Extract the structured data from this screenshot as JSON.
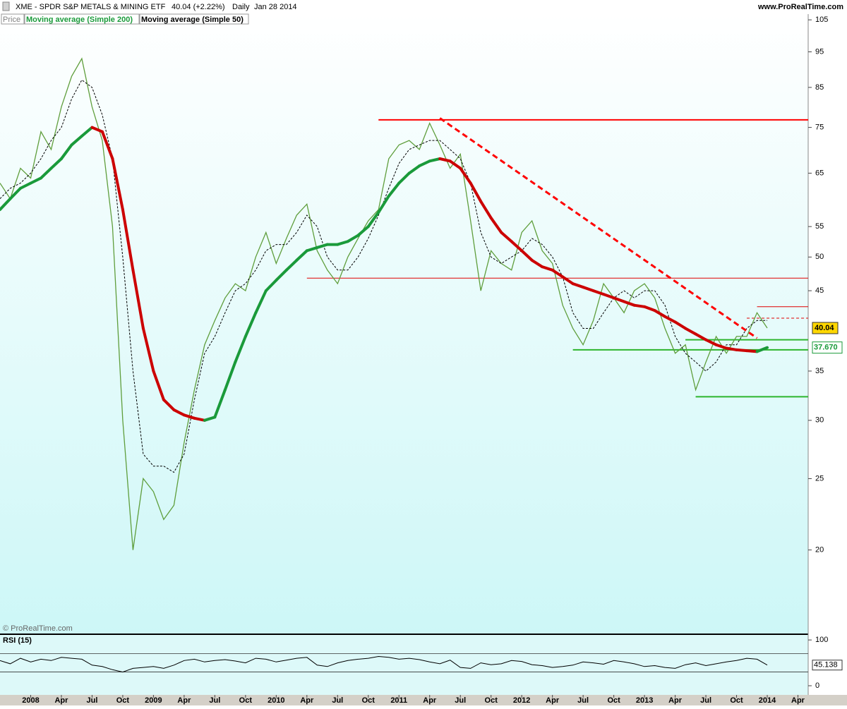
{
  "chart_data": {
    "type": "line",
    "title": "XME - SPDR S&P METALS & MINING ETF",
    "quote": "40.04 (+2.22%)",
    "period": "Daily",
    "date": "Jan 28 2014",
    "source": "www.ProRealTime.com",
    "watermark": "© ProRealTime.com",
    "log_scale": true,
    "x": [
      "2007-10",
      "2007-11",
      "2007-12",
      "2008-01",
      "2008-02",
      "2008-03",
      "2008-04",
      "2008-05",
      "2008-06",
      "2008-07",
      "2008-08",
      "2008-09",
      "2008-10",
      "2008-11",
      "2008-12",
      "2009-01",
      "2009-02",
      "2009-03",
      "2009-04",
      "2009-05",
      "2009-06",
      "2009-07",
      "2009-08",
      "2009-09",
      "2009-10",
      "2009-11",
      "2009-12",
      "2010-01",
      "2010-02",
      "2010-03",
      "2010-04",
      "2010-05",
      "2010-06",
      "2010-07",
      "2010-08",
      "2010-09",
      "2010-10",
      "2010-11",
      "2010-12",
      "2011-01",
      "2011-02",
      "2011-03",
      "2011-04",
      "2011-05",
      "2011-06",
      "2011-07",
      "2011-08",
      "2011-09",
      "2011-10",
      "2011-11",
      "2011-12",
      "2012-01",
      "2012-02",
      "2012-03",
      "2012-04",
      "2012-05",
      "2012-06",
      "2012-07",
      "2012-08",
      "2012-09",
      "2012-10",
      "2012-11",
      "2012-12",
      "2013-01",
      "2013-02",
      "2013-03",
      "2013-04",
      "2013-05",
      "2013-06",
      "2013-07",
      "2013-08",
      "2013-09",
      "2013-10",
      "2013-11",
      "2013-12",
      "2014-01"
    ],
    "xlim": [
      "2007-10",
      "2014-05"
    ],
    "xticks": [
      {
        "value": "2008-01",
        "label": "2008"
      },
      {
        "value": "2008-04",
        "label": "Apr"
      },
      {
        "value": "2008-07",
        "label": "Jul"
      },
      {
        "value": "2008-10",
        "label": "Oct"
      },
      {
        "value": "2009-01",
        "label": "2009"
      },
      {
        "value": "2009-04",
        "label": "Apr"
      },
      {
        "value": "2009-07",
        "label": "Jul"
      },
      {
        "value": "2009-10",
        "label": "Oct"
      },
      {
        "value": "2010-01",
        "label": "2010"
      },
      {
        "value": "2010-04",
        "label": "Apr"
      },
      {
        "value": "2010-07",
        "label": "Jul"
      },
      {
        "value": "2010-10",
        "label": "Oct"
      },
      {
        "value": "2011-01",
        "label": "2011"
      },
      {
        "value": "2011-04",
        "label": "Apr"
      },
      {
        "value": "2011-07",
        "label": "Jul"
      },
      {
        "value": "2011-10",
        "label": "Oct"
      },
      {
        "value": "2012-01",
        "label": "2012"
      },
      {
        "value": "2012-04",
        "label": "Apr"
      },
      {
        "value": "2012-07",
        "label": "Jul"
      },
      {
        "value": "2012-10",
        "label": "Oct"
      },
      {
        "value": "2013-01",
        "label": "2013"
      },
      {
        "value": "2013-04",
        "label": "Apr"
      },
      {
        "value": "2013-07",
        "label": "Jul"
      },
      {
        "value": "2013-10",
        "label": "Oct"
      },
      {
        "value": "2014-01",
        "label": "2014"
      },
      {
        "value": "2014-04",
        "label": "Apr"
      }
    ],
    "ylim": [
      15.4,
      106.9
    ],
    "yticks": [
      20,
      25,
      30,
      35,
      45,
      50,
      55,
      65,
      75,
      85,
      95,
      105
    ],
    "series": [
      {
        "name": "Price",
        "color": "#5f9e3c",
        "values": [
          63,
          60,
          66,
          64,
          74,
          70,
          80,
          88,
          93,
          80,
          72,
          55,
          30,
          20,
          25,
          24,
          22,
          23,
          28,
          33,
          38,
          41,
          44,
          46,
          45,
          50,
          54,
          49,
          53,
          57,
          59,
          51,
          48,
          46,
          50,
          53,
          56,
          58,
          68,
          71,
          72,
          70,
          76,
          71,
          66,
          69,
          56,
          45,
          51,
          49,
          48,
          54,
          56,
          51,
          49,
          43,
          40,
          38,
          41,
          46,
          44,
          42,
          45,
          46,
          44,
          40,
          37,
          38,
          33,
          36,
          39,
          37,
          39,
          39,
          42,
          40.04
        ]
      },
      {
        "name": "Moving average (Simple 200)",
        "color": "#1a9a3a",
        "falling_color": "#cc0000",
        "last_value_label": "37.670",
        "values": [
          58,
          60,
          62,
          63,
          64,
          66,
          68,
          71,
          73,
          75,
          74,
          68,
          58,
          48,
          40,
          35,
          32,
          31,
          30.5,
          30.2,
          30,
          30.3,
          33,
          36,
          39,
          42,
          45,
          46.5,
          48,
          49.5,
          51,
          51.5,
          52,
          52,
          52.5,
          53.5,
          55,
          57.5,
          60.5,
          63,
          65,
          66.5,
          67.5,
          68,
          67.5,
          66,
          63,
          59.5,
          56.5,
          54,
          52.5,
          51,
          49.5,
          48.5,
          48,
          47,
          46,
          45.5,
          45,
          44.5,
          44,
          43.5,
          43,
          42.8,
          42.3,
          41.5,
          40.8,
          40,
          39.3,
          38.6,
          38,
          37.6,
          37.4,
          37.3,
          37.2,
          37.67
        ]
      },
      {
        "name": "Moving average (Simple 50)",
        "color": "#000000",
        "dashed": true,
        "values": [
          60,
          62,
          63,
          65,
          68,
          72,
          75,
          82,
          87,
          85,
          78,
          68,
          50,
          35,
          27,
          26,
          26,
          25.5,
          27,
          32,
          37,
          39,
          42,
          45,
          46,
          48,
          51,
          52,
          52,
          54,
          57,
          55,
          50,
          48,
          48,
          50,
          53,
          57,
          62,
          67,
          70,
          71,
          72,
          72,
          70,
          68,
          63,
          54,
          50,
          49,
          50,
          51,
          53,
          52,
          50,
          47,
          42,
          40,
          40,
          42,
          44,
          45,
          44,
          45,
          45,
          43,
          39,
          37,
          36,
          35,
          36,
          38,
          38,
          40,
          41,
          41
        ]
      }
    ],
    "levels": [
      {
        "x": "2010-11",
        "value": 76.8,
        "color": "#ff0000",
        "width": 2
      },
      {
        "x": "2010-04",
        "value": 46.8,
        "color": "#e00000",
        "width": 1
      },
      {
        "x": "2013-12",
        "value": 42.8,
        "color": "#e00000",
        "width": 1
      },
      {
        "x": "2013-11",
        "value": 41.3,
        "color": "#e00000",
        "width": 1,
        "dashed": true
      },
      {
        "x": "2013-05",
        "value": 38.6,
        "color": "#2db52d",
        "width": 2
      },
      {
        "x": "2012-06",
        "value": 37.4,
        "color": "#2db52d",
        "width": 2
      },
      {
        "x": "2013-06",
        "value": 32.3,
        "color": "#2db52d",
        "width": 2
      }
    ],
    "trendlines": [
      {
        "x": [
          "2011-05",
          "2013-12"
        ],
        "values": [
          77.2,
          38.8
        ],
        "color": "#ff0000",
        "dashed": true
      }
    ],
    "rsi": {
      "type": "line",
      "title": "RSI (15)",
      "color": "#000000",
      "ylim": [
        -20,
        111
      ],
      "yticks": [
        0,
        100
      ],
      "levels": [
        30,
        70
      ],
      "values": [
        55,
        48,
        60,
        52,
        58,
        55,
        62,
        60,
        58,
        45,
        42,
        35,
        30,
        38,
        40,
        42,
        38,
        45,
        55,
        58,
        52,
        55,
        57,
        54,
        50,
        60,
        58,
        52,
        56,
        60,
        62,
        45,
        42,
        50,
        55,
        58,
        60,
        64,
        62,
        58,
        60,
        57,
        52,
        48,
        56,
        40,
        38,
        50,
        46,
        48,
        55,
        53,
        46,
        44,
        40,
        42,
        45,
        52,
        50,
        47,
        55,
        52,
        48,
        42,
        44,
        40,
        38,
        46,
        50,
        44,
        48,
        52,
        55,
        60,
        58,
        45.138
      ]
    }
  }
}
